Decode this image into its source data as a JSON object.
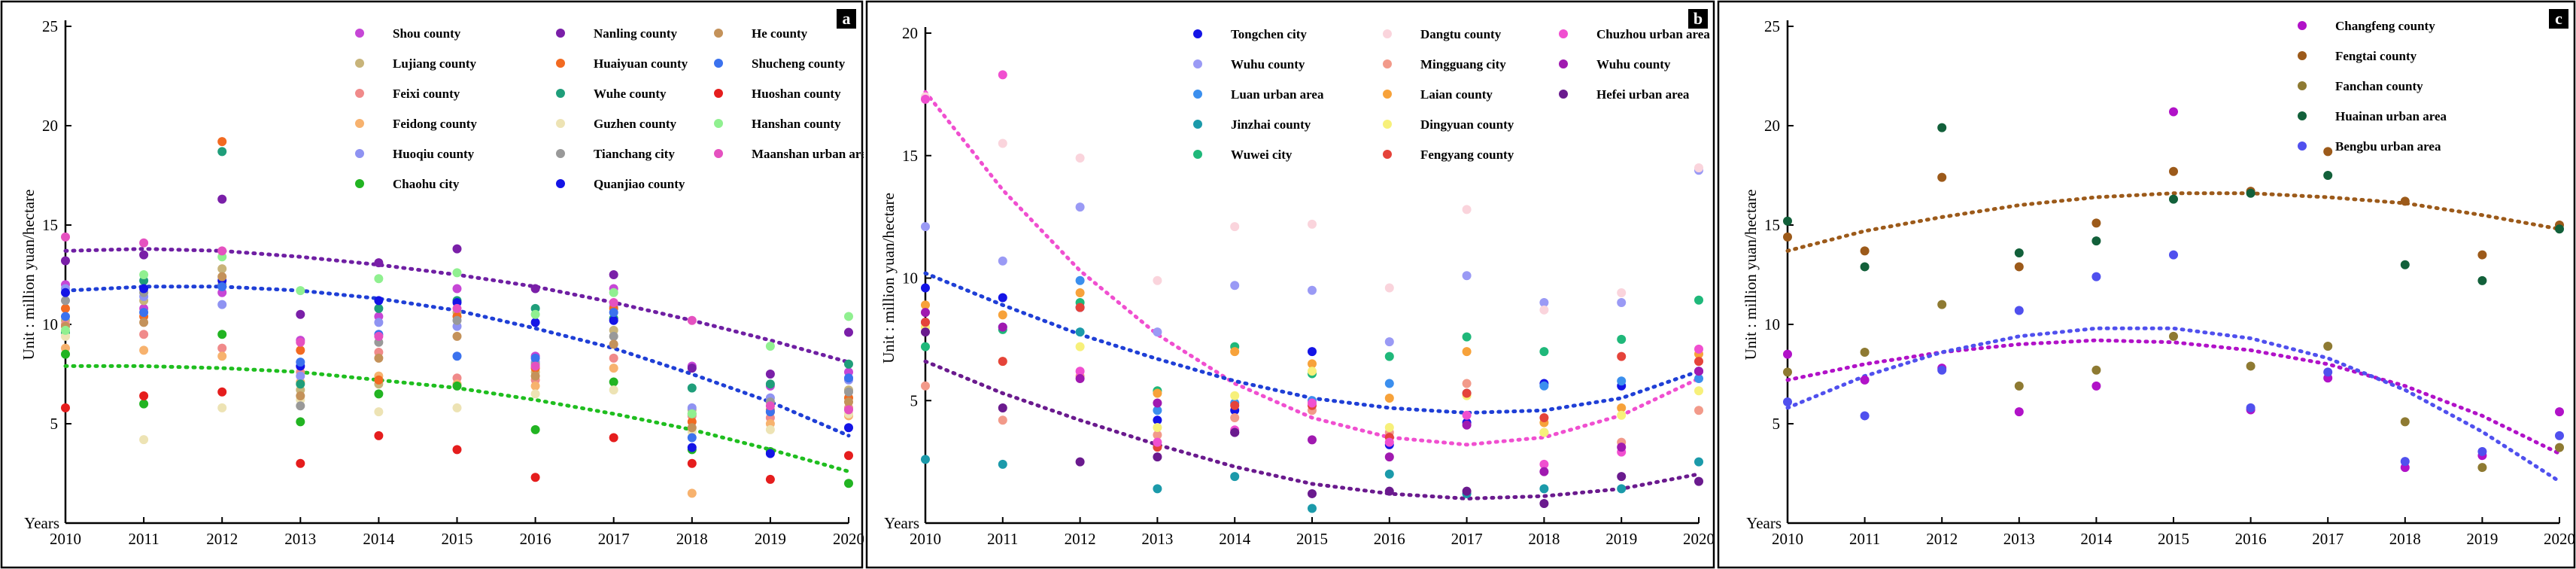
{
  "chart_data": [
    {
      "type": "scatter",
      "panel_label": "a",
      "ylabel": "Unit : million yuan/hectare",
      "ytick_prefix": "Years",
      "x": [
        2010,
        2011,
        2012,
        2013,
        2014,
        2015,
        2016,
        2017,
        2018,
        2019,
        2020
      ],
      "ylim": [
        0,
        25
      ],
      "yticks": [
        5,
        10,
        15,
        20,
        25
      ],
      "series": [
        {
          "name": "Shou county",
          "color": "#c646d6",
          "values": [
            12.0,
            10.8,
            11.6,
            9.2,
            10.4,
            11.8,
            8.4,
            11.8,
            7.9,
            6.9,
            7.6
          ]
        },
        {
          "name": "Lujiang county",
          "color": "#c8b47a",
          "values": [
            10.2,
            11.2,
            12.8,
            6.7,
            7.0,
            10.6,
            7.6,
            9.7,
            5.7,
            6.1,
            6.7
          ]
        },
        {
          "name": "Feixi county",
          "color": "#f08a8a",
          "values": [
            10.0,
            9.5,
            8.8,
            7.6,
            8.6,
            7.3,
            7.2,
            8.3,
            5.4,
            5.3,
            5.8
          ]
        },
        {
          "name": "Feidong county",
          "color": "#f7b26e",
          "values": [
            8.8,
            8.7,
            8.4,
            7.1,
            7.4,
            7.0,
            6.9,
            7.8,
            1.5,
            5.0,
            5.4
          ]
        },
        {
          "name": "Huoqiu county",
          "color": "#8f93f2",
          "values": [
            11.8,
            11.4,
            11.0,
            7.4,
            10.1,
            9.9,
            8.1,
            10.9,
            5.8,
            6.3,
            7.2
          ]
        },
        {
          "name": "Chaohu city",
          "color": "#22b422",
          "values": [
            8.5,
            6.0,
            9.5,
            5.1,
            6.5,
            6.9,
            4.7,
            7.1,
            3.7,
            3.6,
            2.0
          ]
        },
        {
          "name": "Nanling county",
          "color": "#7a1fa8",
          "values": [
            13.2,
            13.5,
            16.3,
            10.5,
            13.1,
            13.8,
            11.8,
            12.5,
            7.8,
            7.5,
            9.6
          ]
        },
        {
          "name": "Huaiyuan county",
          "color": "#f26a21",
          "values": [
            10.8,
            10.4,
            19.2,
            8.7,
            7.2,
            10.4,
            7.8,
            10.8,
            5.1,
            5.6,
            6.3
          ]
        },
        {
          "name": "Wuhe county",
          "color": "#1f9e7a",
          "values": [
            9.6,
            12.2,
            18.7,
            7.0,
            10.8,
            11.2,
            10.8,
            10.3,
            6.8,
            7.0,
            8.0
          ]
        },
        {
          "name": "Guzhen county",
          "color": "#ede3b4",
          "values": [
            9.4,
            4.2,
            5.8,
            6.2,
            5.6,
            5.8,
            6.5,
            6.7,
            4.6,
            4.7,
            5.5
          ]
        },
        {
          "name": "Tianchang city",
          "color": "#999999",
          "values": [
            11.2,
            11.6,
            12.0,
            5.9,
            9.1,
            10.2,
            8.0,
            9.4,
            5.5,
            6.1,
            6.6
          ]
        },
        {
          "name": "Quanjiao county",
          "color": "#1414e6",
          "values": [
            11.6,
            11.8,
            12.2,
            7.9,
            11.2,
            11.1,
            10.1,
            10.2,
            3.8,
            3.5,
            4.8
          ]
        },
        {
          "name": "He county",
          "color": "#c4925a",
          "values": [
            9.9,
            10.1,
            12.4,
            6.4,
            8.3,
            9.4,
            7.4,
            9.0,
            4.8,
            5.7,
            6.1
          ]
        },
        {
          "name": "Shucheng county",
          "color": "#3b72ee",
          "values": [
            10.4,
            10.6,
            11.9,
            8.1,
            9.5,
            8.4,
            8.3,
            10.6,
            4.3,
            5.6,
            7.3
          ]
        },
        {
          "name": "Huoshan county",
          "color": "#e51d1d",
          "values": [
            5.8,
            6.4,
            6.6,
            3.0,
            4.4,
            3.7,
            2.3,
            4.3,
            3.0,
            2.2,
            3.4
          ]
        },
        {
          "name": "Hanshan county",
          "color": "#90f090",
          "values": [
            9.7,
            12.5,
            13.4,
            11.7,
            12.3,
            12.6,
            10.5,
            11.6,
            5.5,
            8.9,
            10.4
          ]
        },
        {
          "name": "Maanshan urban area",
          "color": "#e551c0",
          "values": [
            14.4,
            14.1,
            13.7,
            9.1,
            9.4,
            10.8,
            7.9,
            11.1,
            10.2,
            5.9,
            5.7
          ]
        }
      ],
      "trendlines": [
        {
          "color": "#6f1fa3",
          "values": [
            13.7,
            13.8,
            13.7,
            13.4,
            13.0,
            12.5,
            11.9,
            11.1,
            10.2,
            9.2,
            8.1
          ]
        },
        {
          "color": "#1f3fd6",
          "values": [
            11.7,
            11.9,
            11.9,
            11.7,
            11.3,
            10.7,
            9.8,
            8.8,
            7.5,
            6.1,
            4.4
          ]
        },
        {
          "color": "#1fbe1f",
          "values": [
            7.9,
            7.9,
            7.8,
            7.6,
            7.2,
            6.8,
            6.2,
            5.5,
            4.7,
            3.7,
            2.6
          ]
        }
      ],
      "legend_columns": 3,
      "legend_rows": 6
    },
    {
      "type": "scatter",
      "panel_label": "b",
      "ylabel": "Unit : million yuan/hectare",
      "ytick_prefix": "Years",
      "x": [
        2010,
        2011,
        2012,
        2013,
        2014,
        2015,
        2016,
        2017,
        2018,
        2019,
        2020
      ],
      "ylim": [
        0,
        20
      ],
      "yticks": [
        5,
        10,
        15,
        20
      ],
      "series": [
        {
          "name": "Tongchen city",
          "color": "#1414e6",
          "values": [
            9.6,
            9.2,
            8.8,
            4.2,
            4.6,
            7.0,
            3.2,
            4.1,
            5.7,
            5.6,
            6.2
          ]
        },
        {
          "name": "Wuhu county",
          "color": "#9a9af5",
          "values": [
            12.1,
            10.7,
            12.9,
            7.8,
            9.7,
            9.5,
            7.4,
            10.1,
            9.0,
            9.0,
            14.4
          ]
        },
        {
          "name": "Luan urban area",
          "color": "#3b8fee",
          "values": [
            8.2,
            8.0,
            9.9,
            4.6,
            4.9,
            5.0,
            5.7,
            5.3,
            5.6,
            5.8,
            5.9
          ]
        },
        {
          "name": "Jinzhai county",
          "color": "#1b9aaa",
          "values": [
            2.6,
            2.4,
            7.8,
            1.4,
            1.9,
            0.6,
            2.0,
            1.2,
            1.4,
            1.4,
            2.5
          ]
        },
        {
          "name": "Wuwei city",
          "color": "#1fb87a",
          "values": [
            7.2,
            7.9,
            9.0,
            5.4,
            7.2,
            6.1,
            6.8,
            7.6,
            7.0,
            7.5,
            9.1
          ]
        },
        {
          "name": "Dangtu county",
          "color": "#fad4dc",
          "values": [
            17.4,
            15.5,
            14.9,
            9.9,
            12.1,
            12.2,
            9.6,
            12.8,
            8.7,
            9.4,
            14.5
          ]
        },
        {
          "name": "Mingguang city",
          "color": "#f29a8a",
          "values": [
            5.6,
            4.2,
            6.0,
            3.6,
            4.3,
            4.6,
            3.7,
            5.7,
            3.7,
            3.3,
            4.6
          ]
        },
        {
          "name": "Laian county",
          "color": "#f7a23a",
          "values": [
            8.9,
            8.5,
            9.4,
            5.3,
            7.0,
            6.5,
            5.1,
            7.0,
            4.1,
            4.7,
            6.9
          ]
        },
        {
          "name": "Dingyuan county",
          "color": "#f7f07a",
          "values": [
            8.0,
            6.6,
            7.2,
            3.9,
            5.2,
            6.2,
            3.9,
            5.2,
            3.7,
            4.4,
            5.4
          ]
        },
        {
          "name": "Fengyang county",
          "color": "#e5433a",
          "values": [
            8.2,
            6.6,
            8.8,
            3.1,
            4.8,
            4.8,
            3.5,
            5.3,
            4.3,
            6.8,
            6.6
          ]
        },
        {
          "name": "Chuzhou urban area",
          "color": "#f04fd0",
          "values": [
            17.3,
            18.3,
            6.2,
            3.3,
            3.8,
            4.9,
            3.3,
            4.4,
            2.4,
            2.9,
            7.1
          ]
        },
        {
          "name": "Wuhu county",
          "color": "#a019b0",
          "values": [
            8.6,
            8.0,
            5.9,
            4.9,
            3.7,
            3.4,
            2.7,
            4.0,
            2.1,
            3.1,
            6.2
          ]
        },
        {
          "name": "Hefei urban area",
          "color": "#6a1a8e",
          "values": [
            7.8,
            4.7,
            2.5,
            2.7,
            3.7,
            1.2,
            1.3,
            1.3,
            0.8,
            1.9,
            1.7
          ]
        }
      ],
      "trendlines": [
        {
          "color": "#f04fd0",
          "values": [
            17.6,
            13.6,
            10.3,
            7.7,
            5.7,
            4.3,
            3.5,
            3.2,
            3.5,
            4.4,
            5.9
          ]
        },
        {
          "color": "#1f3fd6",
          "values": [
            10.2,
            8.9,
            7.7,
            6.7,
            5.8,
            5.1,
            4.7,
            4.5,
            4.6,
            5.1,
            6.2
          ]
        },
        {
          "color": "#6a1a8e",
          "values": [
            6.6,
            5.3,
            4.2,
            3.2,
            2.3,
            1.6,
            1.2,
            1.0,
            1.1,
            1.4,
            2.0
          ]
        }
      ],
      "legend_columns": 3,
      "legend_rows": 5
    },
    {
      "type": "scatter",
      "panel_label": "c",
      "ylabel": "Unit : million yuan/hectare",
      "ytick_prefix": "Years",
      "x": [
        2010,
        2011,
        2012,
        2013,
        2014,
        2015,
        2016,
        2017,
        2018,
        2019,
        2020
      ],
      "ylim": [
        0,
        25
      ],
      "yticks": [
        5,
        10,
        15,
        20,
        25
      ],
      "series": [
        {
          "name": "Changfeng county",
          "color": "#b112c8",
          "values": [
            8.5,
            7.2,
            7.8,
            5.6,
            6.9,
            20.7,
            5.7,
            7.3,
            2.8,
            3.4,
            5.6
          ]
        },
        {
          "name": "Fengtai county",
          "color": "#9c5a1a",
          "values": [
            14.4,
            13.7,
            17.4,
            12.9,
            15.1,
            17.7,
            16.7,
            18.7,
            16.2,
            13.5,
            15.0
          ]
        },
        {
          "name": "Fanchan county",
          "color": "#8e7a32",
          "values": [
            7.6,
            8.6,
            11.0,
            6.9,
            7.7,
            9.4,
            7.9,
            8.9,
            5.1,
            2.8,
            3.8
          ]
        },
        {
          "name": "Huainan urban area",
          "color": "#12603a",
          "values": [
            15.2,
            12.9,
            19.9,
            13.6,
            14.2,
            16.3,
            16.6,
            17.5,
            13.0,
            12.2,
            14.8
          ]
        },
        {
          "name": "Bengbu urban area",
          "color": "#5050ee",
          "values": [
            6.1,
            5.4,
            7.7,
            10.7,
            12.4,
            13.5,
            5.8,
            7.6,
            3.1,
            3.6,
            4.4
          ]
        }
      ],
      "trendlines": [
        {
          "color": "#9c5a1a",
          "values": [
            13.7,
            14.7,
            15.4,
            16.0,
            16.4,
            16.6,
            16.6,
            16.4,
            16.1,
            15.5,
            14.8
          ]
        },
        {
          "color": "#b112c8",
          "values": [
            7.2,
            8.0,
            8.6,
            9.0,
            9.2,
            9.1,
            8.7,
            8.0,
            6.9,
            5.4,
            3.5
          ]
        },
        {
          "color": "#5050ee",
          "values": [
            5.8,
            7.4,
            8.6,
            9.4,
            9.8,
            9.8,
            9.3,
            8.3,
            6.7,
            4.6,
            2.1
          ]
        }
      ],
      "legend_columns": 1,
      "legend_rows": 5
    }
  ]
}
